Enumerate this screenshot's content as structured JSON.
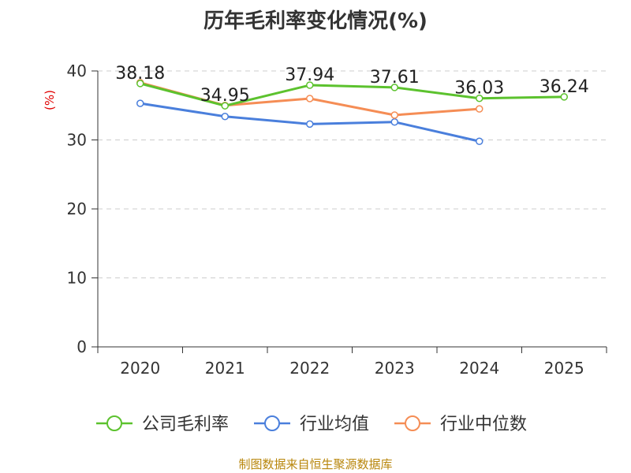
{
  "chart_data": {
    "type": "line",
    "title": "历年毛利率变化情况(%)",
    "ylabel": "(%)",
    "xlabel": "",
    "ylim": [
      0,
      40
    ],
    "yticks": [
      0,
      10,
      20,
      30,
      40
    ],
    "categories": [
      "2020",
      "2021",
      "2022",
      "2023",
      "2024",
      "2025"
    ],
    "grid": true,
    "legend_position": "bottom",
    "series": [
      {
        "name": "公司毛利率",
        "color": "#5cc22e",
        "values": [
          38.18,
          34.95,
          37.94,
          37.61,
          36.03,
          36.24
        ],
        "labels": [
          "38.18",
          "34.95",
          "37.94",
          "37.61",
          "36.03",
          "36.24"
        ]
      },
      {
        "name": "行业均值",
        "color": "#4a7fdc",
        "values": [
          35.3,
          33.4,
          32.3,
          32.6,
          29.8,
          null
        ]
      },
      {
        "name": "行业中位数",
        "color": "#f58d55",
        "values": [
          38.3,
          35.0,
          36.0,
          33.6,
          34.5,
          null
        ]
      }
    ],
    "source": "制图数据来自恒生聚源数据库"
  }
}
